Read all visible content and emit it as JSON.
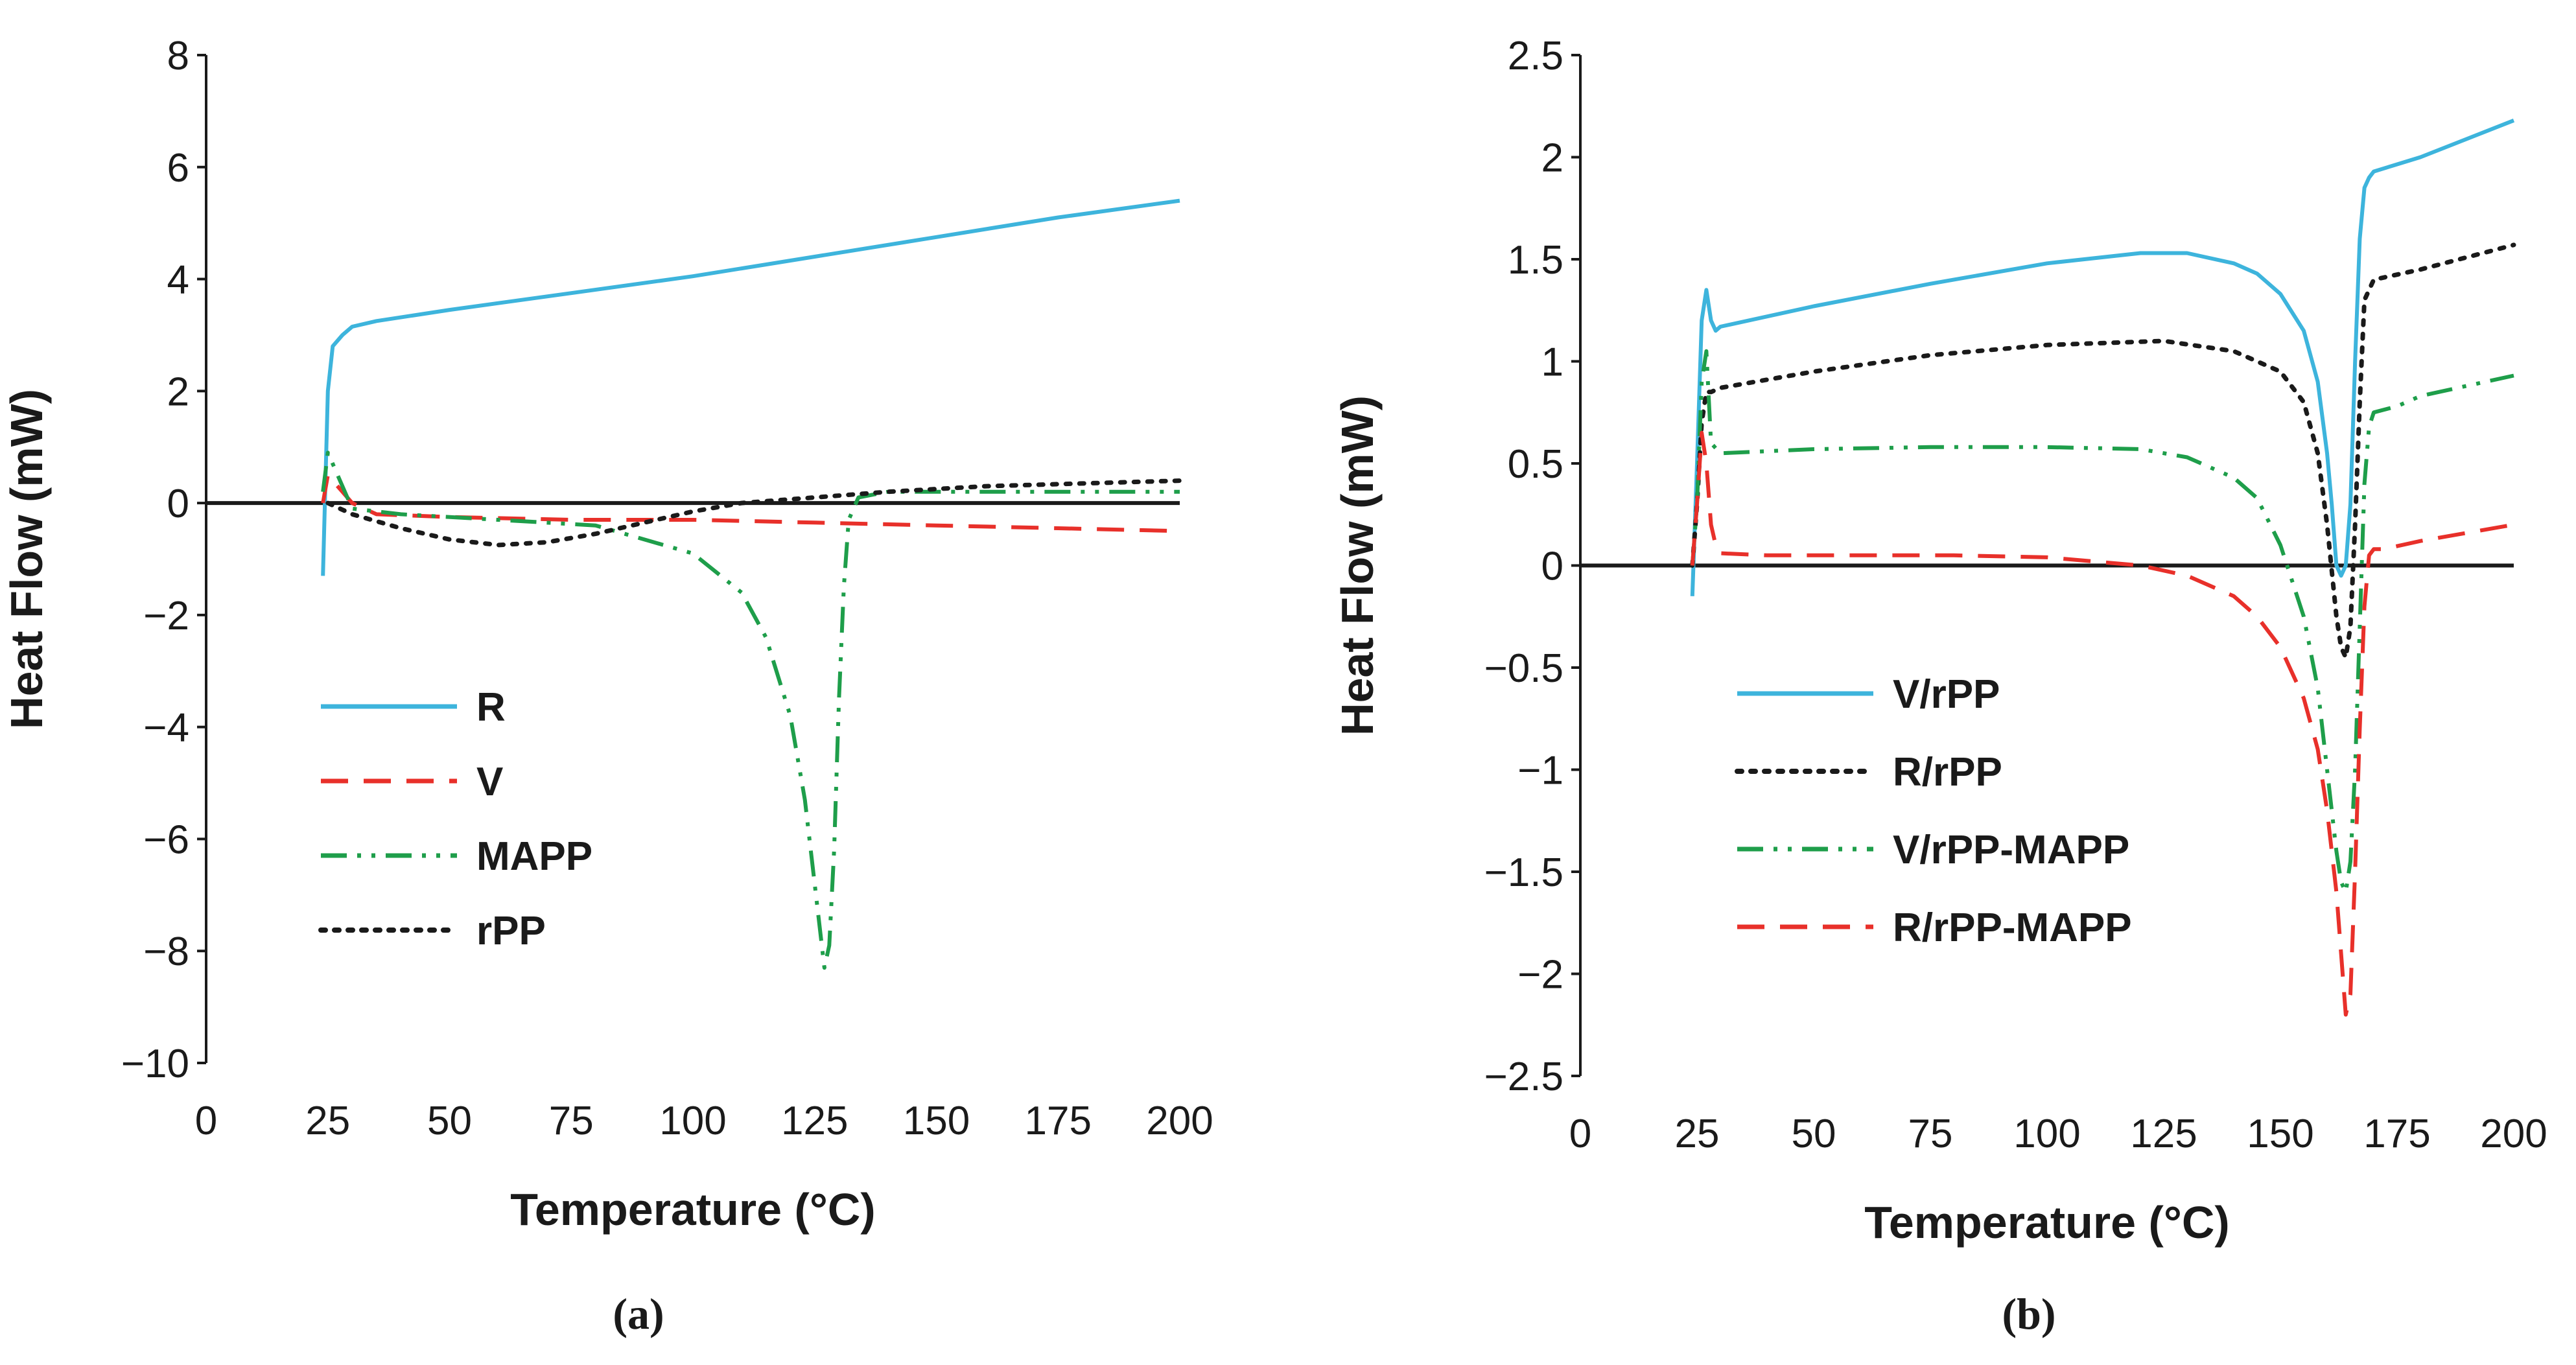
{
  "chart_data": [
    {
      "id": "a",
      "type": "line",
      "panel_label": "(a)",
      "title": "",
      "xlabel": "Temperature (°C)",
      "ylabel": "Heat Flow (mW)",
      "xlim": [
        0,
        200
      ],
      "ylim": [
        -10,
        8
      ],
      "xticks": [
        0,
        25,
        50,
        75,
        100,
        125,
        150,
        175,
        200
      ],
      "yticks": [
        -10,
        -8,
        -6,
        -4,
        -2,
        0,
        2,
        4,
        6,
        8
      ],
      "xtick_labels": [
        "0",
        "25",
        "50",
        "75",
        "100",
        "125",
        "150",
        "175",
        "200"
      ],
      "ytick_labels": [
        "−10",
        "−8",
        "−6",
        "−4",
        "−2",
        "0",
        "2",
        "4",
        "6",
        "8"
      ],
      "legend_position": "lower-left",
      "series": [
        {
          "name": "R",
          "color": "#3db4dc",
          "dash": "solid",
          "x": [
            24,
            25,
            26,
            28,
            30,
            35,
            50,
            75,
            100,
            125,
            150,
            175,
            200
          ],
          "y": [
            -1.3,
            2.0,
            2.8,
            3.0,
            3.15,
            3.25,
            3.45,
            3.75,
            4.05,
            4.4,
            4.75,
            5.1,
            5.4
          ]
        },
        {
          "name": "V",
          "color": "#e8302a",
          "dash": "dashed",
          "x": [
            24,
            25,
            26,
            28,
            30,
            35,
            50,
            75,
            100,
            125,
            150,
            175,
            200
          ],
          "y": [
            0.0,
            0.5,
            0.4,
            0.2,
            0.0,
            -0.2,
            -0.25,
            -0.3,
            -0.3,
            -0.35,
            -0.4,
            -0.45,
            -0.5
          ]
        },
        {
          "name": "MAPP",
          "color": "#1e9e4a",
          "dash": "dashdotdot",
          "x": [
            24,
            25,
            26,
            28,
            30,
            40,
            60,
            80,
            100,
            110,
            115,
            120,
            123,
            125,
            127,
            128,
            129,
            130,
            131,
            132,
            134,
            140,
            160,
            200
          ],
          "y": [
            0.2,
            0.9,
            0.7,
            0.3,
            -0.1,
            -0.2,
            -0.3,
            -0.4,
            -0.9,
            -1.6,
            -2.4,
            -3.8,
            -5.3,
            -6.8,
            -8.3,
            -7.9,
            -6.2,
            -3.5,
            -1.5,
            -0.3,
            0.1,
            0.2,
            0.2,
            0.2
          ]
        },
        {
          "name": "rPP",
          "color": "#1a1a1a",
          "dash": "dotted",
          "x": [
            25,
            30,
            40,
            50,
            60,
            70,
            80,
            90,
            100,
            110,
            125,
            140,
            160,
            180,
            200
          ],
          "y": [
            0.0,
            -0.2,
            -0.45,
            -0.65,
            -0.75,
            -0.7,
            -0.55,
            -0.35,
            -0.15,
            0.0,
            0.1,
            0.2,
            0.3,
            0.35,
            0.4
          ]
        }
      ]
    },
    {
      "id": "b",
      "type": "line",
      "panel_label": "(b)",
      "title": "",
      "xlabel": "Temperature (°C)",
      "ylabel": "Heat Flow (mW)",
      "xlim": [
        0,
        200
      ],
      "ylim": [
        -2.5,
        2.5
      ],
      "xticks": [
        0,
        25,
        50,
        75,
        100,
        125,
        150,
        175,
        200
      ],
      "yticks": [
        -2.5,
        -2,
        -1.5,
        -1,
        -0.5,
        0,
        0.5,
        1,
        1.5,
        2,
        2.5
      ],
      "xtick_labels": [
        "0",
        "25",
        "50",
        "75",
        "100",
        "125",
        "150",
        "175",
        "200"
      ],
      "ytick_labels": [
        "−2.5",
        "−2",
        "−1.5",
        "−1",
        "−0.5",
        "0",
        "0.5",
        "1",
        "1.5",
        "2",
        "2.5"
      ],
      "legend_position": "lower-left",
      "series": [
        {
          "name": "V/rPP",
          "color": "#3db4dc",
          "dash": "solid",
          "x": [
            24,
            25,
            26,
            27,
            28,
            29,
            30,
            50,
            75,
            100,
            120,
            130,
            140,
            145,
            150,
            155,
            158,
            160,
            161,
            162,
            163,
            164,
            165,
            166,
            167,
            168,
            169,
            170,
            180,
            200
          ],
          "y": [
            -0.15,
            0.5,
            1.2,
            1.35,
            1.2,
            1.15,
            1.17,
            1.27,
            1.38,
            1.48,
            1.53,
            1.53,
            1.48,
            1.43,
            1.33,
            1.15,
            0.9,
            0.55,
            0.3,
            0.0,
            -0.05,
            0.0,
            0.3,
            1.0,
            1.6,
            1.85,
            1.9,
            1.93,
            2.0,
            2.18
          ]
        },
        {
          "name": "R/rPP",
          "color": "#1a1a1a",
          "dash": "dotted",
          "x": [
            24,
            25,
            26,
            27,
            28,
            30,
            50,
            75,
            100,
            125,
            140,
            150,
            155,
            158,
            160,
            162,
            163,
            164,
            165,
            166,
            167,
            168,
            170,
            180,
            200
          ],
          "y": [
            0.0,
            0.3,
            0.7,
            0.85,
            0.85,
            0.87,
            0.95,
            1.03,
            1.08,
            1.1,
            1.05,
            0.95,
            0.8,
            0.55,
            0.2,
            -0.25,
            -0.4,
            -0.45,
            -0.3,
            0.2,
            0.8,
            1.3,
            1.4,
            1.45,
            1.57
          ]
        },
        {
          "name": "V/rPP-MAPP",
          "color": "#1e9e4a",
          "dash": "dashdotdot",
          "x": [
            24,
            25,
            26,
            27,
            28,
            30,
            50,
            75,
            100,
            120,
            130,
            140,
            145,
            150,
            155,
            158,
            160,
            162,
            163,
            164,
            165,
            166,
            167,
            168,
            169,
            170,
            175,
            180,
            200
          ],
          "y": [
            0.0,
            0.3,
            0.9,
            1.05,
            0.6,
            0.55,
            0.57,
            0.58,
            0.58,
            0.57,
            0.53,
            0.43,
            0.33,
            0.1,
            -0.25,
            -0.6,
            -1.0,
            -1.4,
            -1.55,
            -1.6,
            -1.45,
            -1.0,
            -0.3,
            0.4,
            0.68,
            0.75,
            0.78,
            0.83,
            0.93
          ]
        },
        {
          "name": "R/rPP-MAPP",
          "color": "#e8302a",
          "dash": "dashed",
          "x": [
            24,
            25,
            26,
            27,
            28,
            29,
            30,
            40,
            60,
            80,
            100,
            110,
            120,
            130,
            140,
            145,
            150,
            155,
            158,
            160,
            162,
            163,
            164,
            165,
            166,
            167,
            168,
            169,
            170,
            172,
            180,
            190,
            200
          ],
          "y": [
            0.0,
            0.3,
            0.65,
            0.5,
            0.2,
            0.1,
            0.06,
            0.05,
            0.05,
            0.05,
            0.04,
            0.02,
            0.0,
            -0.05,
            -0.15,
            -0.25,
            -0.4,
            -0.65,
            -0.9,
            -1.2,
            -1.6,
            -1.9,
            -2.2,
            -2.1,
            -1.5,
            -0.8,
            -0.2,
            0.05,
            0.08,
            0.08,
            0.12,
            0.16,
            0.2
          ]
        }
      ]
    }
  ]
}
